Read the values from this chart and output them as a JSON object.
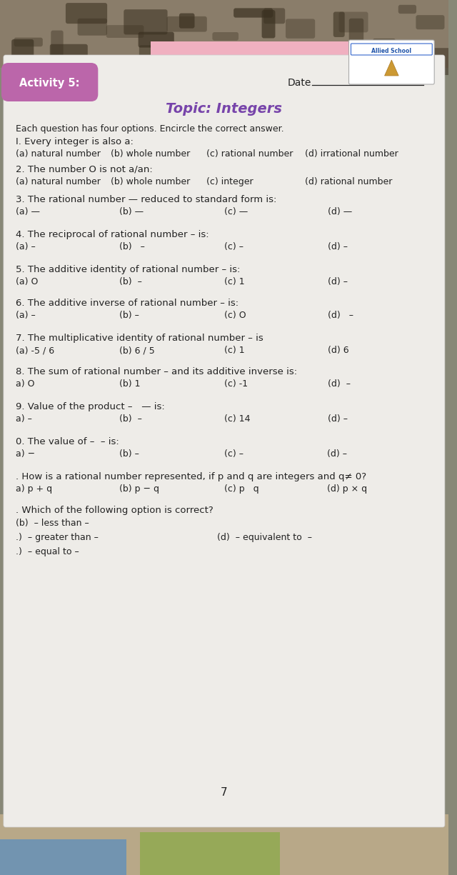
{
  "bg_top_color": "#7a6a5a",
  "bg_bottom_color": "#c8b89a",
  "paper_color": "#eeece8",
  "pink_bg": "#f0b0c0",
  "activity_bg": "#bb66aa",
  "activity_text": "Activity 5:",
  "date_label": "Date",
  "topic": "Topic: Integers",
  "instruction": "Each question has four options. Encircle the correct answer.",
  "q1_text": "I. Every integer is also a:",
  "q1_opts": [
    "(a) natural number",
    "(b) whole number",
    "(c) rational number",
    "(d) irrational number"
  ],
  "q2_text": "2. The number O is not a/an:",
  "q2_opts_left": [
    "(a) natural number",
    "(b) whole number",
    "(c) integer"
  ],
  "q2_opt_d": "(d) rational number",
  "q3_text": "3. The rational number — reduced to standard form is:",
  "q3_opts": [
    "(a) —",
    "(b) —",
    "(c) —",
    "(d) —"
  ],
  "q4_text": "4. The reciprocal of rational number – is:",
  "q4_opts": [
    "(a) –",
    "(b)   –",
    "(c) –",
    "(d) –"
  ],
  "q5_text": "5. The additive identity of rational number – is:",
  "q5_opts": [
    "(a) O",
    "(b)  –",
    "(c) 1",
    "(d) –"
  ],
  "q6_text": "6. The additive inverse of rational number – is:",
  "q6_opts": [
    "(a) –",
    "(b) –",
    "(c) O",
    "(d)   –"
  ],
  "q7_text": "7. The multiplicative identity of rational number – is",
  "q7_opts": [
    "(a) -5 / 6",
    "(b) 6 / 5",
    "(c) 1",
    "(d) 6"
  ],
  "q8_text": "8. The sum of rational number – and its additive inverse is:",
  "q8_opts": [
    "a) O",
    "(b) 1",
    "(c) -1",
    "(d)  –"
  ],
  "q9_text": "9. Value of the product –   — is:",
  "q9_opts": [
    "a) –",
    "(b)  –",
    "(c) 14",
    "(d) –"
  ],
  "q10_text": "0. The value of –  – is:",
  "q10_opts_ab": [
    "a) −",
    "(b) –"
  ],
  "q10_opts_cd": [
    "(c) –",
    "(d) –"
  ],
  "q11_text": ". How is a rational number represented, if p and q are integers and q≠ 0?",
  "q11_opts_left": [
    "a) p + q",
    "(b) p − q"
  ],
  "q11_opts_right": [
    "(c) p   q",
    "(d) p × q"
  ],
  "q12_text": ". Which of the following option is correct?",
  "q12_opts": [
    ".)  – greater than –",
    "(b)  – less than –",
    ".)  – equal to –",
    "(d)  – equivalent to  –"
  ],
  "page_num": "7",
  "text_color": "#222222",
  "topic_color": "#7744aa"
}
